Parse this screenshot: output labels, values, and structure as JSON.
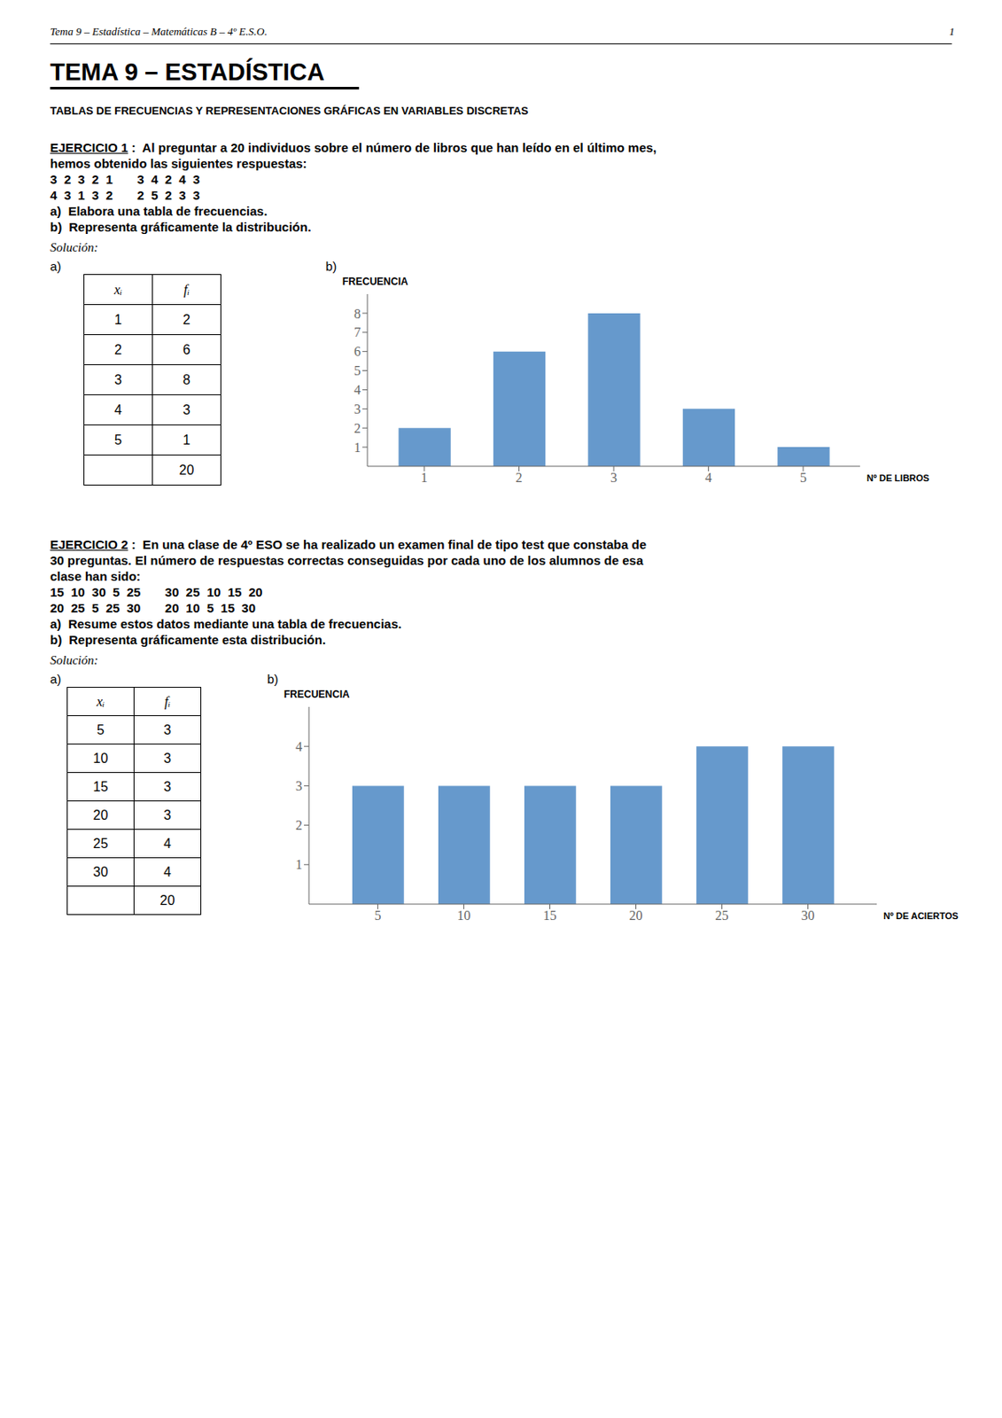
{
  "chart_data": [
    {
      "type": "bar",
      "x": [
        1,
        2,
        3,
        4,
        5
      ],
      "values": [
        2,
        6,
        8,
        3,
        1
      ],
      "total": 20,
      "color": "#6699CC",
      "xlabel": "Nº DE LIBROS",
      "ylabel": "FRECUENCIA",
      "xlim": [
        0.4,
        5.6
      ],
      "xticks": [
        1,
        2,
        3,
        4,
        5
      ],
      "ylim": [
        0,
        9
      ],
      "yticks": [
        1,
        2,
        3,
        4,
        5,
        6,
        7,
        8
      ],
      "grid": false,
      "annotations": [
        "Tema 9 – Estadística – Matemáticas B – 4º E.S.O.",
        "1",
        "TEMA 9 – ESTADÍSTICA",
        "TABLAS DE FRECUENCIAS Y REPRESENTACIONES GRÁFICAS EN VARIABLES DISCRETAS",
        "EJERCICIO 1",
        " :  Al preguntar a 20 individuos sobre el número de libros que han leído en el último mes,",
        "hemos obtenido las siguientes respuestas:",
        "3  2  3  2  1       3  4  2  4  3",
        "4  3  1  3  2       2  5  2  3  3",
        "a)  Elabora una tabla de frecuencias.",
        "b)  Representa gráficamente la distribución.",
        "Solución:",
        "a)",
        "b)",
        "xᵢ",
        "fᵢ"
      ]
    },
    {
      "type": "bar",
      "x": [
        5,
        10,
        15,
        20,
        25,
        30
      ],
      "values": [
        3,
        3,
        3,
        3,
        4,
        4
      ],
      "total": 20,
      "color": "#6699CC",
      "xlabel": "Nº DE ACIERTOS",
      "ylabel": "FRECUENCIA",
      "xlim": [
        1,
        34
      ],
      "xticks": [
        5,
        10,
        15,
        20,
        25,
        30
      ],
      "ylim": [
        0,
        5
      ],
      "yticks": [
        1,
        2,
        3,
        4
      ],
      "grid": false,
      "annotations": [
        "EJERCICIO 2",
        " :  En una clase de 4º ESO se ha realizado un examen final de tipo test que constaba de",
        "30 preguntas. El número de respuestas correctas conseguidas por cada uno de los alumnos de esa",
        "clase han sido:",
        "15  10  30  5  25       30  25  10  15  20",
        "20  25  5  25  30       20  10  5  15  30",
        "a)  Resume estos datos mediante una tabla de frecuencias.",
        "b)  Representa gráficamente esta distribución.",
        "Solución:",
        "a)",
        "b)",
        "xᵢ",
        "fᵢ"
      ]
    }
  ]
}
